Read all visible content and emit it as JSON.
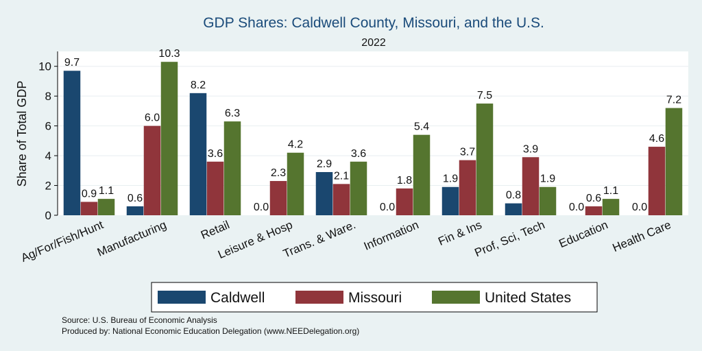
{
  "chart_data": {
    "type": "bar",
    "title": "GDP Shares: Caldwell County, Missouri, and the U.S.",
    "subtitle": "2022",
    "xlabel": "",
    "ylabel": "Share of Total GDP",
    "ylim": [
      0,
      11
    ],
    "yticks": [
      0,
      2,
      4,
      6,
      8,
      10
    ],
    "grid": true,
    "legend_position": "bottom",
    "categories": [
      "Ag/For/Fish/Hunt",
      "Manufacturing",
      "Retail",
      "Leisure & Hosp",
      "Trans. & Ware.",
      "Information",
      "Fin & Ins",
      "Prof, Sci, Tech",
      "Education",
      "Health Care"
    ],
    "series": [
      {
        "name": "Caldwell",
        "color": "#1a476f",
        "values": [
          9.7,
          0.6,
          8.2,
          0.0,
          2.9,
          0.0,
          1.9,
          0.8,
          0.0,
          0.0
        ],
        "labels": [
          "9.7",
          "0.6",
          "8.2",
          "0.0",
          "2.9",
          "0.0",
          "1.9",
          "0.8",
          "0.0",
          "0.0"
        ]
      },
      {
        "name": "Missouri",
        "color": "#90353b",
        "values": [
          0.9,
          6.0,
          3.6,
          2.3,
          2.1,
          1.8,
          3.7,
          3.9,
          0.6,
          4.6
        ],
        "labels": [
          "0.9",
          "6.0",
          "3.6",
          "2.3",
          "2.1",
          "1.8",
          "3.7",
          "3.9",
          "0.6",
          "4.6"
        ]
      },
      {
        "name": "United States",
        "color": "#55752f",
        "values": [
          1.1,
          10.3,
          6.3,
          4.2,
          3.6,
          5.4,
          7.5,
          1.9,
          1.1,
          7.2
        ],
        "labels": [
          "1.1",
          "10.3",
          "6.3",
          "4.2",
          "3.6",
          "5.4",
          "7.5",
          "1.9",
          "1.1",
          "7.2"
        ]
      }
    ]
  },
  "notes": {
    "source": "Source: U.S. Bureau of Economic Analysis",
    "produced": "Produced by: National Economic Education Delegation (www.NEEDelegation.org)"
  }
}
